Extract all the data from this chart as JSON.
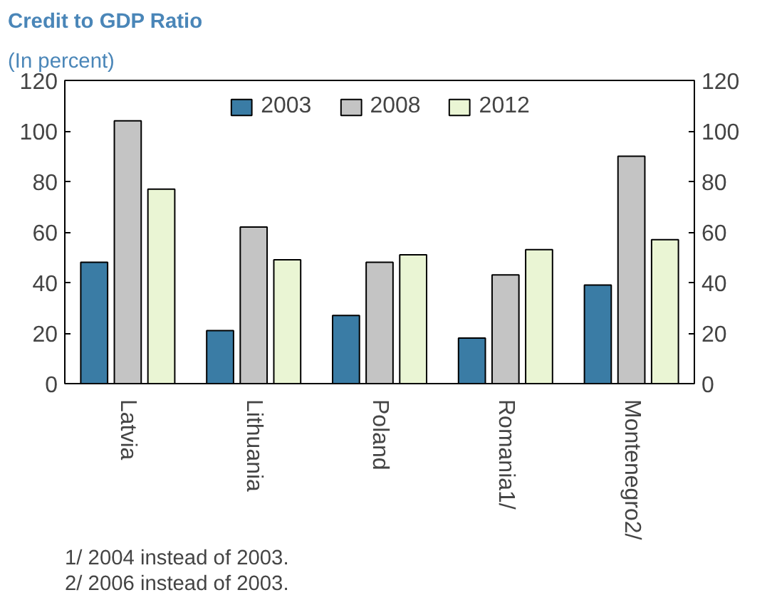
{
  "chart_data": {
    "type": "bar",
    "title": "Credit to GDP Ratio",
    "subtitle": "(In percent)",
    "categories": [
      "Latvia",
      "Lithuania",
      "Poland",
      "Romania1/",
      "Montenegro2/"
    ],
    "series": [
      {
        "name": "2003",
        "color": "#3a7ca5",
        "values": [
          48,
          21,
          27,
          18,
          39
        ]
      },
      {
        "name": "2008",
        "color": "#c4c4c4",
        "values": [
          104,
          62,
          48,
          43,
          90
        ]
      },
      {
        "name": "2012",
        "color": "#eaf5d4",
        "values": [
          77,
          49,
          51,
          53,
          57
        ]
      }
    ],
    "ylim": [
      0,
      120
    ],
    "yticks": [
      0,
      20,
      40,
      60,
      80,
      100,
      120
    ],
    "y2lim": [
      0,
      120
    ],
    "y2ticks": [
      0,
      20,
      40,
      60,
      80,
      100,
      120
    ],
    "legend": "top",
    "grid": false,
    "annotations": [
      "1/ 2004 instead of 2003.",
      "2/ 2006 instead of 2003."
    ]
  }
}
